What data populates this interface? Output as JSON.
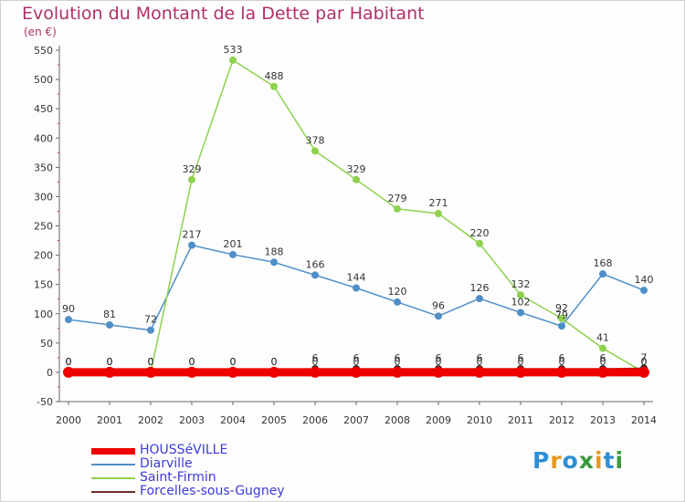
{
  "header": {
    "title": "Evolution du Montant de la Dette par Habitant",
    "unit": "(en €)"
  },
  "logo": {
    "text": "Proxiti",
    "letter_colors": [
      "#2c8fd6",
      "#e9971b",
      "#2c8fd6",
      "#3a9a3a",
      "#e9971b",
      "#2c8fd6",
      "#3a9a3a"
    ]
  },
  "chart_data": {
    "type": "line",
    "title": "Evolution du Montant de la Dette par Habitant",
    "ylabel": "(en €)",
    "xlabel": "",
    "x": [
      "2000",
      "2001",
      "2002",
      "2003",
      "2004",
      "2005",
      "2006",
      "2007",
      "2008",
      "2009",
      "2010",
      "2011",
      "2012",
      "2013",
      "2014"
    ],
    "ylim": [
      -50,
      550
    ],
    "yticks": [
      -50,
      0,
      50,
      100,
      150,
      200,
      250,
      300,
      350,
      400,
      450,
      500,
      550
    ],
    "grid": false,
    "legend_position": "bottom-left",
    "series": [
      {
        "name": "HOUSSéVILLE",
        "color": "#ee0000",
        "values": [
          0,
          0,
          0,
          0,
          0,
          0,
          0,
          0,
          0,
          0,
          0,
          0,
          0,
          0,
          0
        ],
        "labels": [
          "0",
          "0",
          "0",
          "0",
          "0",
          "0",
          "0",
          "0",
          "0",
          "0",
          "0",
          "0",
          "0",
          "0",
          "0"
        ]
      },
      {
        "name": "Diarville",
        "color": "#4f8fc8",
        "values": [
          90,
          81,
          72,
          217,
          201,
          188,
          166,
          144,
          120,
          96,
          126,
          102,
          79,
          168,
          140
        ],
        "labels": [
          "90",
          "81",
          "72",
          "217",
          "201",
          "188",
          "166",
          "144",
          "120",
          "96",
          "126",
          "102",
          "79",
          "168",
          "140"
        ]
      },
      {
        "name": "Saint-Firmin",
        "color": "#8fd14f",
        "values": [
          0,
          0,
          0,
          329,
          533,
          488,
          378,
          329,
          279,
          271,
          220,
          132,
          92,
          41,
          0
        ],
        "labels": [
          "0",
          "0",
          "0",
          "329",
          "533",
          "488",
          "378",
          "329",
          "279",
          "271",
          "220",
          "132",
          "92",
          "41",
          "0"
        ]
      },
      {
        "name": "Forcelles-sous-Gugney",
        "color": "#6b2a2a",
        "values": [
          0,
          0,
          0,
          0,
          0,
          0,
          6,
          6,
          6,
          6,
          6,
          6,
          6,
          6,
          7
        ],
        "labels": [
          "0",
          "0",
          "0",
          "0",
          "0",
          "0",
          "6",
          "6",
          "6",
          "6",
          "6",
          "6",
          "6",
          "6",
          "7"
        ]
      }
    ]
  }
}
